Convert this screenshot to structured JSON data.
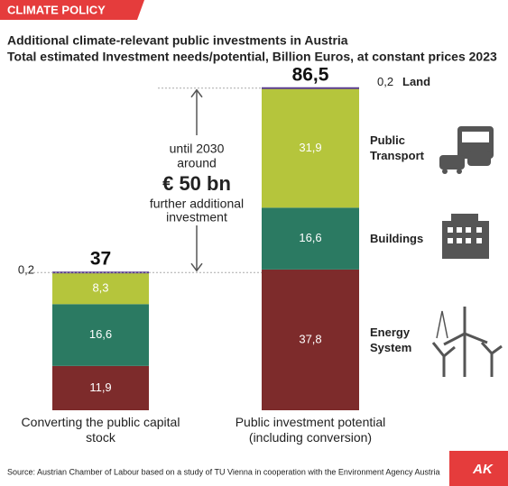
{
  "chart_data": {
    "type": "stacked-bar",
    "tag": "CLIMATE POLICY",
    "title": "Additional climate-relevant public investments in Austria",
    "subtitle": "Total estimated Investment needs/potential, Billion Euros, at constant prices 2023",
    "categories": [
      "Converting the public capital stock",
      "Public investment potential (including conversion)"
    ],
    "series": [
      {
        "name": "Energy System",
        "color": "#7d2b2b",
        "values": [
          11.9,
          37.8
        ],
        "value_labels": [
          "11,9",
          "37,8"
        ]
      },
      {
        "name": "Buildings",
        "color": "#2b7a62",
        "values": [
          16.6,
          16.6
        ],
        "value_labels": [
          "16,6",
          "16,6"
        ]
      },
      {
        "name": "Public Transport",
        "color": "#b5c53c",
        "values": [
          8.3,
          31.9
        ],
        "value_labels": [
          "8,3",
          "31,9"
        ]
      },
      {
        "name": "Land",
        "color": "#5b3d8f",
        "values": [
          0.2,
          0.2
        ],
        "value_labels": [
          "0,2",
          "0,2"
        ]
      }
    ],
    "totals": [
      37,
      86.5
    ],
    "total_labels": [
      "37",
      "86,5"
    ],
    "annotation": [
      "until 2030",
      "around",
      "€ 50 bn",
      "further additional",
      "investment"
    ],
    "source": "Source: Austrian Chamber of Labour based on a study of TU Vienna in cooperation with the Environment Agency Austria",
    "logo": "AK"
  }
}
